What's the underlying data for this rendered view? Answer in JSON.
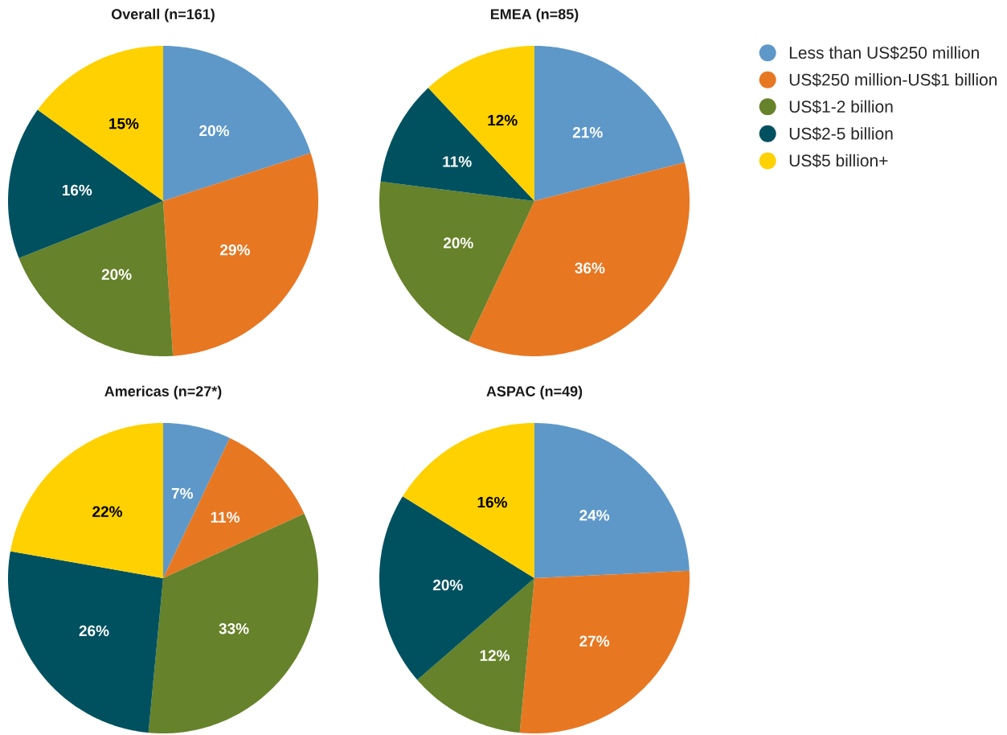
{
  "chart_data": [
    {
      "type": "pie",
      "title": "Overall (n=161)",
      "categories": [
        null,
        null,
        null,
        null,
        null
      ],
      "values": [
        20,
        29,
        20,
        16,
        15
      ],
      "value_labels": [
        "20%",
        "29%",
        "20%",
        "16%",
        "15%"
      ],
      "colors": [
        "#5e98c9",
        "#e87722",
        "#66822a",
        "#005160",
        "#ffd100"
      ]
    },
    {
      "type": "pie",
      "title": "EMEA (n=85)",
      "categories": [
        "Less than US$250 million",
        "US$250 million-US$1 billion",
        "US$1-2 billion",
        "US$2-5 billion",
        "US$5 billion+"
      ],
      "values": [
        21,
        36,
        20,
        11,
        12
      ],
      "value_labels": [
        "21%",
        "36%",
        "20%",
        "11%",
        "12%"
      ],
      "colors": [
        "#5e98c9",
        "#e87722",
        "#66822a",
        "#005160",
        "#ffd100"
      ],
      "legend": "right"
    },
    {
      "type": "pie",
      "title": "Americas (n=27*)",
      "categories": [
        null,
        null,
        null,
        null,
        null
      ],
      "values": [
        7,
        11,
        33,
        26,
        22
      ],
      "value_labels": [
        "7%",
        "11%",
        "33%",
        "26%",
        "22%"
      ],
      "colors": [
        "#5e98c9",
        "#e87722",
        "#66822a",
        "#005160",
        "#ffd100"
      ]
    },
    {
      "type": "pie",
      "title": "ASPAC (n=49)",
      "categories": [
        null,
        null,
        null,
        null,
        null
      ],
      "values": [
        24,
        27,
        12,
        20,
        16
      ],
      "value_labels": [
        "24%",
        "27%",
        "12%",
        "20%",
        "16%"
      ],
      "colors": [
        "#5e98c9",
        "#e87722",
        "#66822a",
        "#005160",
        "#ffd100"
      ]
    }
  ]
}
